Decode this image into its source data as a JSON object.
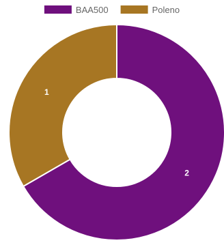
{
  "chart_data": {
    "type": "pie",
    "variant": "doughnut",
    "categories": [
      "BAA500",
      "Poleno"
    ],
    "values": [
      2,
      1
    ],
    "data_labels": [
      "2",
      "1"
    ],
    "colors": [
      "#6f107d",
      "#a77623"
    ],
    "legend": {
      "position": "top",
      "entries": [
        "BAA500",
        "Poleno"
      ]
    },
    "title": ""
  }
}
